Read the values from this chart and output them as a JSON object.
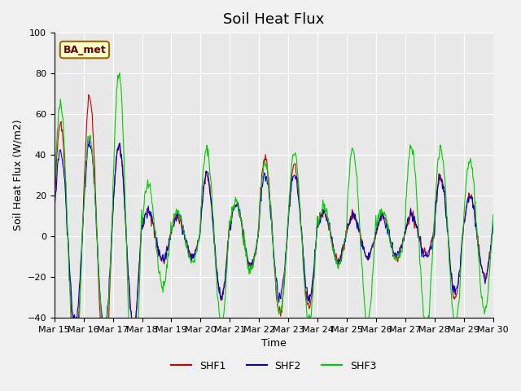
{
  "title": "Soil Heat Flux",
  "ylabel": "Soil Heat Flux (W/m2)",
  "xlabel": "Time",
  "ylim": [
    -40,
    100
  ],
  "background_color": "#f0f0f0",
  "plot_bg_color": "#e8e8e8",
  "legend_label": "BA_met",
  "series": {
    "SHF1_color": "#cc0000",
    "SHF2_color": "#0000cc",
    "SHF3_color": "#00cc00"
  },
  "x_tick_labels": [
    "Mar 15",
    "Mar 16",
    "Mar 17",
    "Mar 18",
    "Mar 19",
    "Mar 20",
    "Mar 21",
    "Mar 22",
    "Mar 23",
    "Mar 24",
    "Mar 25",
    "Mar 26",
    "Mar 27",
    "Mar 28",
    "Mar 29",
    "Mar 30"
  ],
  "yticks": [
    -40,
    -20,
    0,
    20,
    40,
    60,
    80,
    100
  ]
}
